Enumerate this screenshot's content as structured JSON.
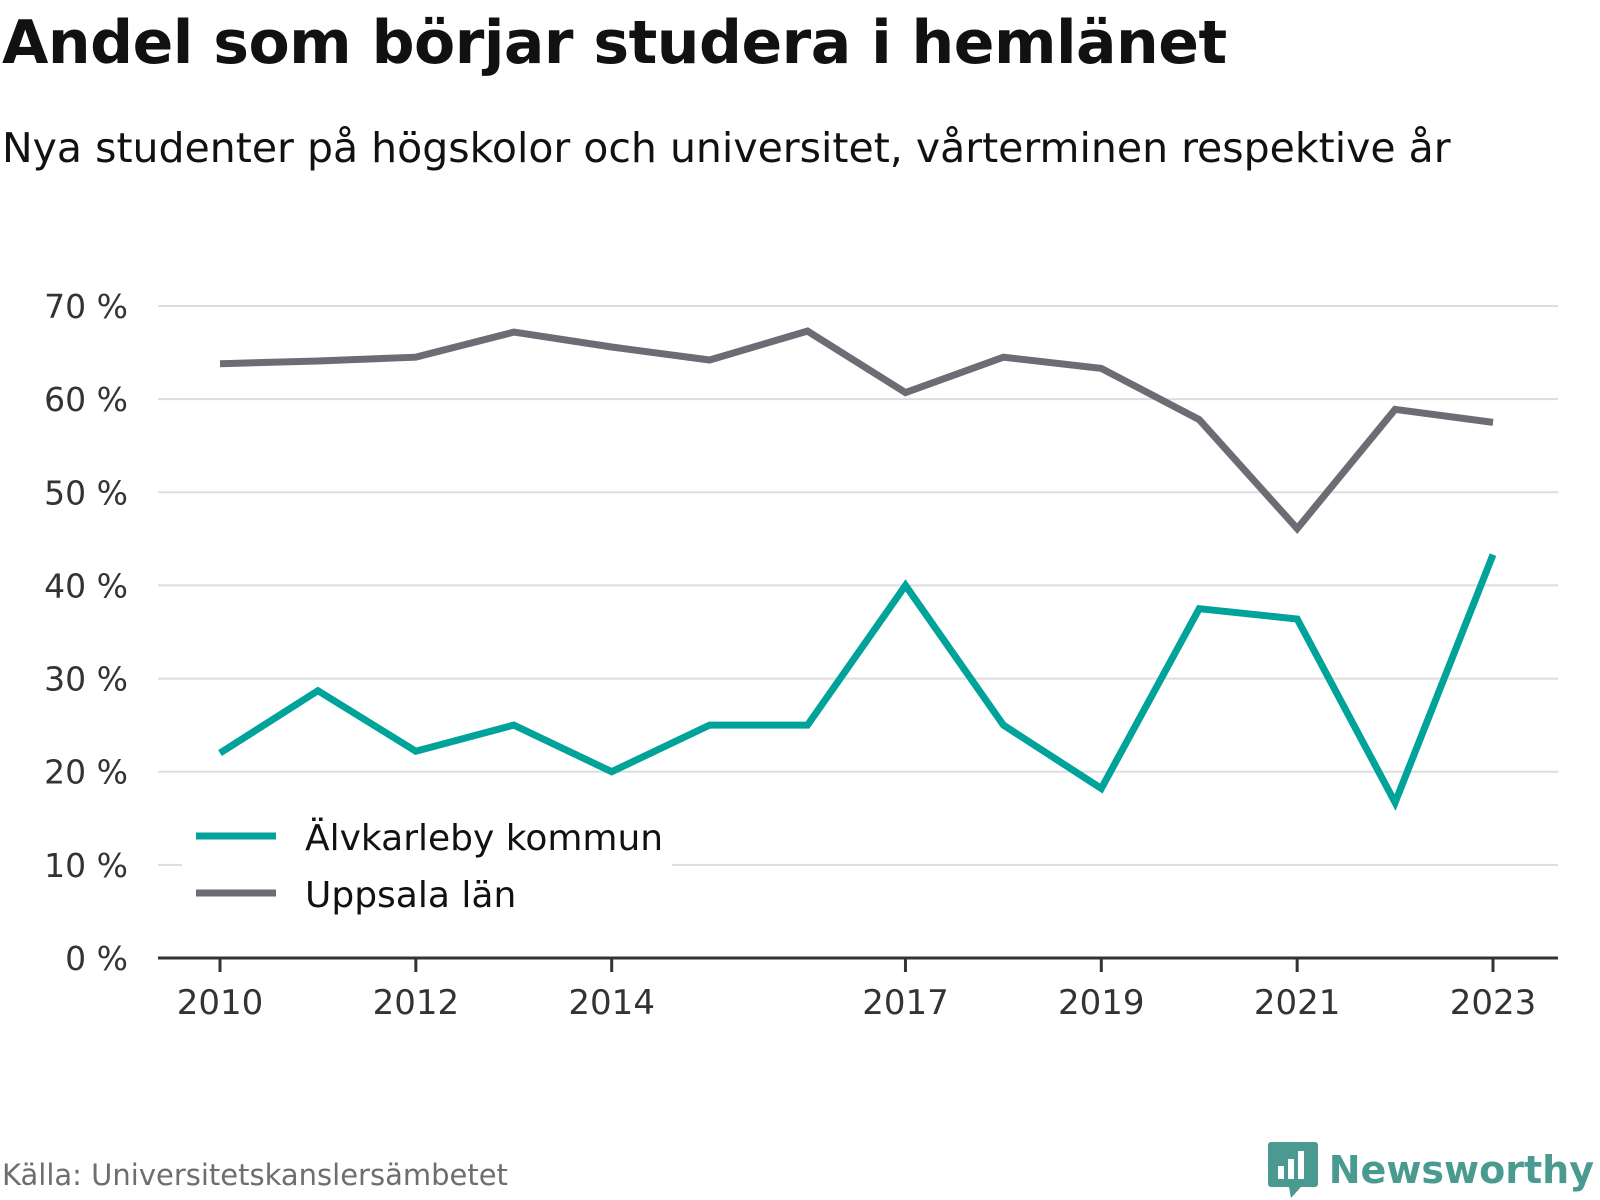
{
  "header": {
    "title": "Andel som börjar studera i hemlänet",
    "subtitle": "Nya studenter på högskolor och universitet, vårterminen respektive år"
  },
  "footer": {
    "source": "Källa: Universitetskanslersämbetet",
    "brand": "Newsworthy",
    "brand_icon": "bar-chart-speech-bubble-icon"
  },
  "colors": {
    "series_1": "#00a39a",
    "series_2": "#6d6c74",
    "grid": "#dddddd",
    "axis": "#333333",
    "text": "#333333",
    "brand": "#4a9a91"
  },
  "chart_data": {
    "type": "line",
    "x": [
      2010,
      2011,
      2012,
      2013,
      2014,
      2015,
      2016,
      2017,
      2018,
      2019,
      2020,
      2021,
      2022,
      2023
    ],
    "x_tick_labels": [
      "2010",
      "2012",
      "2014",
      "2017",
      "2019",
      "2021",
      "2023"
    ],
    "y_tick_labels": [
      "0 %",
      "10 %",
      "20 %",
      "30 %",
      "40 %",
      "50 %",
      "60 %",
      "70 %"
    ],
    "ylim": [
      0,
      70
    ],
    "grid": true,
    "legend_position": "bottom-left",
    "series": [
      {
        "name": "Älvkarleby kommun",
        "color": "#00a39a",
        "values": [
          22.0,
          28.7,
          22.2,
          25.0,
          20.0,
          25.0,
          25.0,
          40.0,
          25.0,
          18.2,
          37.5,
          36.4,
          16.7,
          43.3
        ]
      },
      {
        "name": "Uppsala län",
        "color": "#6d6c74",
        "values": [
          63.8,
          64.1,
          64.5,
          67.2,
          65.6,
          64.2,
          67.3,
          60.7,
          64.5,
          63.3,
          57.8,
          46.1,
          58.9,
          57.5
        ]
      }
    ]
  }
}
